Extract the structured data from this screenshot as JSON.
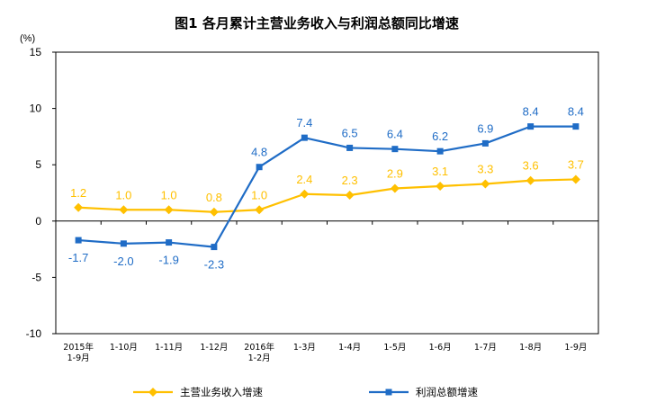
{
  "chart_data": {
    "type": "line",
    "title": "图1  各月累计主营业务收入与利润总额同比增速",
    "ylabel": "(%)",
    "xlabel": "",
    "ylim": [
      -10,
      15
    ],
    "yticks": [
      15,
      10,
      5,
      0,
      -5,
      -10
    ],
    "grid": false,
    "legend_position": "bottom",
    "categories": [
      [
        "2015年",
        "1-9月"
      ],
      [
        "1-10月"
      ],
      [
        "1-11月"
      ],
      [
        "1-12月"
      ],
      [
        "2016年",
        "1-2月"
      ],
      [
        "1-3月"
      ],
      [
        "1-4月"
      ],
      [
        "1-5月"
      ],
      [
        "1-6月"
      ],
      [
        "1-7月"
      ],
      [
        "1-8月"
      ],
      [
        "1-9月"
      ]
    ],
    "series": [
      {
        "name": "主营业务收入增速",
        "color": "#FFC000",
        "marker": "diamond",
        "values": [
          1.2,
          1.0,
          1.0,
          0.8,
          1.0,
          2.4,
          2.3,
          2.9,
          3.1,
          3.3,
          3.6,
          3.7
        ],
        "labels": [
          "1.2",
          "1.0",
          "1.0",
          "0.8",
          "1.0",
          "2.4",
          "2.3",
          "2.9",
          "3.1",
          "3.3",
          "3.6",
          "3.7"
        ]
      },
      {
        "name": "利润总额增速",
        "color": "#1F6CC6",
        "marker": "square",
        "values": [
          -1.7,
          -2.0,
          -1.9,
          -2.3,
          4.8,
          7.4,
          6.5,
          6.4,
          6.2,
          6.9,
          8.4,
          8.4
        ],
        "labels": [
          "-1.7",
          "-2.0",
          "-1.9",
          "-2.3",
          "4.8",
          "7.4",
          "6.5",
          "6.4",
          "6.2",
          "6.9",
          "8.4",
          "8.4"
        ]
      }
    ]
  }
}
